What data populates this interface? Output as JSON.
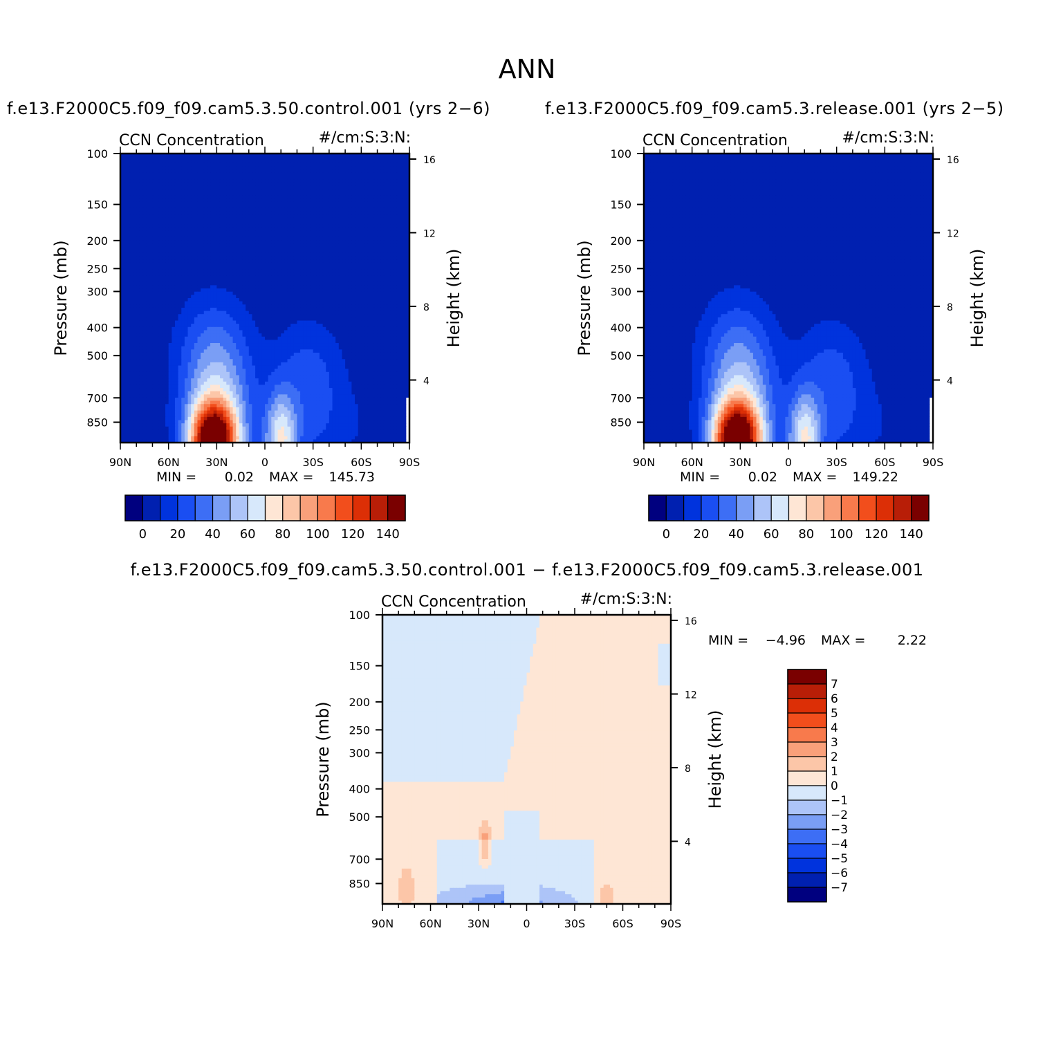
{
  "title": "ANN",
  "panels": [
    {
      "title": "f.e13.F2000C5.f09_f09.cam5.3.50.control.001 (yrs 2−6)",
      "variable": "CCN Concentration",
      "units": "#/cm:S:3:N:",
      "ylabel_left": "Pressure (mb)",
      "ylabel_right": "Height (km)",
      "pressure_ticks": [
        "100",
        "150",
        "200",
        "250",
        "300",
        "400",
        "500",
        "700",
        "850"
      ],
      "height_ticks": [
        "16",
        "12",
        "8",
        "4"
      ],
      "lat_ticks": [
        "90N",
        "60N",
        "30N",
        "0",
        "30S",
        "60S",
        "90S"
      ],
      "min_label": "MIN =",
      "min_value": "0.02",
      "max_label": "MAX =",
      "max_value": "145.73",
      "colorbar_labels": [
        "0",
        "20",
        "40",
        "60",
        "80",
        "100",
        "120",
        "140"
      ]
    },
    {
      "title": "f.e13.F2000C5.f09_f09.cam5.3.release.001 (yrs 2−5)",
      "variable": "CCN Concentration",
      "units": "#/cm:S:3:N:",
      "ylabel_left": "Pressure (mb)",
      "ylabel_right": "Height (km)",
      "pressure_ticks": [
        "100",
        "150",
        "200",
        "250",
        "300",
        "400",
        "500",
        "700",
        "850"
      ],
      "height_ticks": [
        "16",
        "12",
        "8",
        "4"
      ],
      "lat_ticks": [
        "90N",
        "60N",
        "30N",
        "0",
        "30S",
        "60S",
        "90S"
      ],
      "min_label": "MIN =",
      "min_value": "0.02",
      "max_label": "MAX =",
      "max_value": "149.22",
      "colorbar_labels": [
        "0",
        "20",
        "40",
        "60",
        "80",
        "100",
        "120",
        "140"
      ]
    },
    {
      "title": "f.e13.F2000C5.f09_f09.cam5.3.50.control.001 − f.e13.F2000C5.f09_f09.cam5.3.release.001",
      "variable": "CCN Concentration",
      "units": "#/cm:S:3:N:",
      "ylabel_left": "Pressure (mb)",
      "ylabel_right": "Height (km)",
      "pressure_ticks": [
        "100",
        "150",
        "200",
        "250",
        "300",
        "400",
        "500",
        "700",
        "850"
      ],
      "height_ticks": [
        "16",
        "12",
        "8",
        "4"
      ],
      "lat_ticks": [
        "90N",
        "60N",
        "30N",
        "0",
        "30S",
        "60S",
        "90S"
      ],
      "min_label": "MIN =",
      "min_value": "−4.96",
      "max_label": "MAX =",
      "max_value": "2.22",
      "colorbar_labels": [
        "7",
        "6",
        "5",
        "4",
        "3",
        "2",
        "1",
        "0",
        "−1",
        "−2",
        "−3",
        "−4",
        "−5",
        "−6",
        "−7"
      ]
    }
  ],
  "colors": {
    "abs_scale": [
      "#00007f",
      "#0020b0",
      "#0033dd",
      "#1a4ef2",
      "#3d6ef5",
      "#7a9ef5",
      "#adc4f8",
      "#d7e8fb",
      "#fee6d5",
      "#fcc6a8",
      "#f9a07a",
      "#f87a4c",
      "#f24e1c",
      "#dc2f06",
      "#b81e07",
      "#7a0000"
    ],
    "diff_scale_top_to_bottom": [
      "#7a0000",
      "#b81e07",
      "#dc2f06",
      "#f24e1c",
      "#f87a4c",
      "#f9a07a",
      "#fcc6a8",
      "#fee6d5",
      "#d7e8fb",
      "#adc4f8",
      "#7a9ef5",
      "#3d6ef5",
      "#1a4ef2",
      "#0033dd",
      "#0020b0",
      "#00007f"
    ]
  },
  "chart_data": [
    {
      "type": "heatmap",
      "title": "f.e13.F2000C5.f09_f09.cam5.3.50.control.001 (yrs 2−6)",
      "variable": "CCN Concentration",
      "x_axis": "latitude (90N to 90S)",
      "xlim": [
        90,
        -90
      ],
      "ylim_pressure_mb": [
        100,
        1000
      ],
      "y_scale": "log",
      "levels": [
        0,
        10,
        20,
        30,
        40,
        50,
        60,
        70,
        80,
        90,
        100,
        110,
        120,
        130,
        140
      ],
      "min": 0.02,
      "max": 145.73,
      "peak": {
        "lat": 30,
        "pressure_mb": 1000,
        "value": 145.73
      },
      "shape": "maximum near surface at ~30N with secondary maximum ~10S; values decrease upward; near 1 above 400 mb"
    },
    {
      "type": "heatmap",
      "title": "f.e13.F2000C5.f09_f09.cam5.3.release.001 (yrs 2−5)",
      "variable": "CCN Concentration",
      "x_axis": "latitude (90N to 90S)",
      "xlim": [
        90,
        -90
      ],
      "ylim_pressure_mb": [
        100,
        1000
      ],
      "y_scale": "log",
      "levels": [
        0,
        10,
        20,
        30,
        40,
        50,
        60,
        70,
        80,
        90,
        100,
        110,
        120,
        130,
        140
      ],
      "min": 0.02,
      "max": 149.22,
      "peak": {
        "lat": 30,
        "pressure_mb": 1000,
        "value": 149.22
      },
      "shape": "maximum near surface at ~30N with secondary maximum ~10S; values decrease upward; near 1 above 400 mb"
    },
    {
      "type": "heatmap",
      "title": "f.e13.F2000C5.f09_f09.cam5.3.50.control.001 − f.e13.F2000C5.f09_f09.cam5.3.release.001",
      "variable": "CCN Concentration",
      "x_axis": "latitude (90N to 90S)",
      "xlim": [
        90,
        -90
      ],
      "ylim_pressure_mb": [
        100,
        1000
      ],
      "y_scale": "log",
      "levels": [
        -7,
        -6,
        -5,
        -4,
        -3,
        -2,
        -1,
        0,
        1,
        2,
        3,
        4,
        5,
        6,
        7
      ],
      "min": -4.96,
      "max": 2.22,
      "shape": "small negative (−1 to 0) upper NH and tropics, small positive (0 to 1) elsewhere; local positive 1–3 near 30N 600–750 mb; negative −1 to −5 near surface 60N–45S"
    }
  ]
}
